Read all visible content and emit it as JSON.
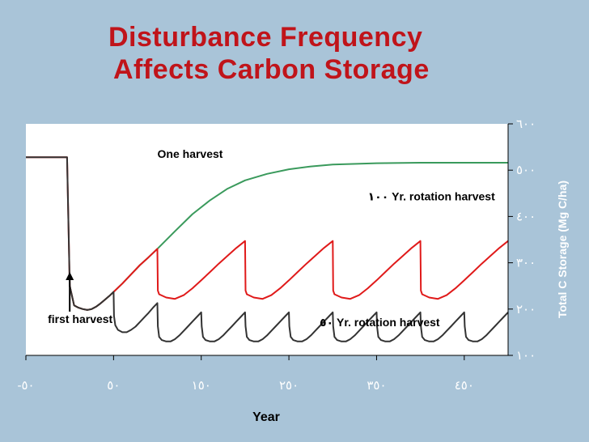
{
  "slide": {
    "title_line1": "Disturbance Frequency",
    "title_line2": "Affects Carbon Storage"
  },
  "chart_data": {
    "type": "line",
    "title": "Disturbance Frequency Affects Carbon Storage",
    "xlabel": "Year",
    "ylabel": "Total C Storage (Mg C/ha)",
    "xlim": [
      -50,
      500
    ],
    "ylim": [
      100,
      600
    ],
    "x_ticks": [
      -50,
      50,
      150,
      250,
      350,
      450
    ],
    "x_tick_labels": [
      "-٥٠",
      "٥٠",
      "١٥٠",
      "٢٥٠",
      "٣٥٠",
      "٤٥٠"
    ],
    "y_ticks": [
      100,
      200,
      300,
      400,
      500,
      600
    ],
    "y_tick_labels": [
      "١٠٠",
      "٢٠٠",
      "٣٠٠",
      "٤٠٠",
      "٥٠٠",
      "٦٠٠"
    ],
    "y_axis_side": "right",
    "grid": false,
    "annotations": [
      {
        "text": "One harvest",
        "x": 100,
        "y": 527
      },
      {
        "text": "١٠٠ Yr. rotation harvest",
        "x": 340,
        "y": 435
      },
      {
        "text": "٥٠ Yr. rotation harvest",
        "x": 285,
        "y": 163
      },
      {
        "text": "first harvest",
        "x": -25,
        "y": 170,
        "arrow_to": {
          "x": 0,
          "y": 280
        }
      }
    ],
    "series": [
      {
        "name": "One harvest",
        "color": "#3a9a5c",
        "x": [
          0,
          5,
          10,
          15,
          20,
          25,
          30,
          35,
          40,
          45,
          50,
          60,
          70,
          80,
          90,
          100,
          120,
          140,
          160,
          180,
          200,
          225,
          250,
          275,
          300,
          350,
          400,
          450,
          500
        ],
        "y": [
          250,
          208,
          203,
          200,
          198,
          200,
          205,
          212,
          220,
          228,
          237,
          255,
          275,
          295,
          312,
          330,
          368,
          405,
          435,
          460,
          478,
          492,
          502,
          508,
          512,
          515,
          516,
          516,
          516
        ]
      },
      {
        "name": "100 Yr. rotation harvest",
        "color": "#e01a1a",
        "x": [
          -50,
          -3,
          0,
          5,
          10,
          15,
          20,
          25,
          30,
          35,
          40,
          45,
          50,
          60,
          70,
          80,
          90,
          100,
          100.5,
          102,
          110,
          120,
          130,
          140,
          150,
          160,
          170,
          180,
          190,
          200,
          200.5,
          202,
          210,
          220,
          230,
          240,
          250,
          260,
          270,
          280,
          290,
          300,
          300.5,
          302,
          310,
          320,
          330,
          340,
          350,
          360,
          370,
          380,
          390,
          400,
          400.5,
          402,
          410,
          420,
          430,
          440,
          450,
          460,
          470,
          480,
          490,
          500
        ],
        "y": [
          528,
          528,
          250,
          208,
          203,
          200,
          198,
          200,
          205,
          212,
          220,
          228,
          237,
          255,
          275,
          295,
          312,
          330,
          240,
          232,
          225,
          222,
          230,
          245,
          262,
          280,
          298,
          315,
          332,
          347,
          240,
          232,
          225,
          222,
          230,
          245,
          262,
          280,
          298,
          315,
          332,
          347,
          240,
          232,
          225,
          222,
          230,
          245,
          262,
          280,
          298,
          315,
          332,
          347,
          240,
          232,
          225,
          222,
          230,
          245,
          262,
          280,
          298,
          315,
          332,
          347
        ]
      },
      {
        "name": "50 Yr. rotation harvest",
        "color": "#333333",
        "x": [
          -50,
          -3,
          0,
          5,
          10,
          15,
          20,
          25,
          30,
          35,
          40,
          45,
          50,
          50.5,
          52,
          55,
          60,
          65,
          70,
          75,
          80,
          85,
          90,
          95,
          100,
          100.5,
          102,
          105,
          110,
          115,
          120,
          125,
          130,
          135,
          140,
          145,
          150,
          150.5,
          152,
          155,
          160,
          165,
          170,
          175,
          180,
          185,
          190,
          195,
          200,
          200.5,
          202,
          205,
          210,
          215,
          220,
          225,
          230,
          235,
          240,
          245,
          250,
          250.5,
          252,
          255,
          260,
          265,
          270,
          275,
          280,
          285,
          290,
          295,
          300,
          300.5,
          302,
          305,
          310,
          315,
          320,
          325,
          330,
          335,
          340,
          345,
          350,
          350.5,
          352,
          355,
          360,
          365,
          370,
          375,
          380,
          385,
          390,
          395,
          400,
          400.5,
          402,
          405,
          410,
          415,
          420,
          425,
          430,
          435,
          440,
          445,
          450,
          450.5,
          452,
          455,
          460,
          465,
          470,
          475,
          480,
          485,
          490,
          495,
          500
        ],
        "y": [
          528,
          528,
          250,
          208,
          203,
          200,
          198,
          200,
          205,
          212,
          220,
          228,
          237,
          185,
          165,
          155,
          150,
          150,
          155,
          162,
          172,
          182,
          192,
          203,
          213,
          163,
          140,
          133,
          130,
          130,
          135,
          143,
          153,
          163,
          173,
          183,
          193,
          163,
          140,
          133,
          130,
          130,
          135,
          143,
          153,
          163,
          173,
          183,
          193,
          163,
          140,
          133,
          130,
          130,
          135,
          143,
          153,
          163,
          173,
          183,
          193,
          163,
          140,
          133,
          130,
          130,
          135,
          143,
          153,
          163,
          173,
          183,
          193,
          163,
          140,
          133,
          130,
          130,
          135,
          143,
          153,
          163,
          173,
          183,
          193,
          163,
          140,
          133,
          130,
          130,
          135,
          143,
          153,
          163,
          173,
          183,
          193,
          163,
          140,
          133,
          130,
          130,
          135,
          143,
          153,
          163,
          173,
          183,
          193,
          163,
          140,
          133,
          130,
          130,
          135,
          143,
          153,
          163,
          173,
          183,
          193
        ]
      }
    ]
  }
}
